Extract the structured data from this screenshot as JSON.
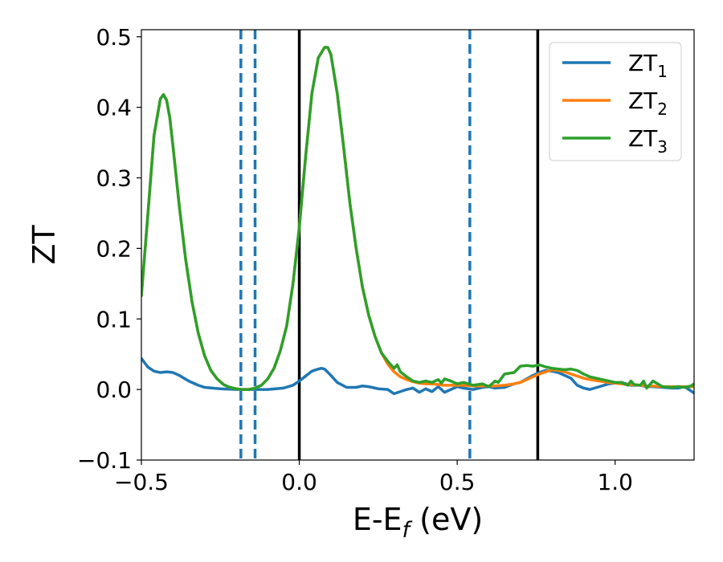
{
  "chart_data": {
    "type": "line",
    "xlabel": {
      "main": "E-E",
      "sub": "f",
      "suffix": " (eV)"
    },
    "ylabel": "ZT",
    "xlim": [
      -0.5,
      1.25
    ],
    "ylim": [
      -0.1,
      0.51
    ],
    "xticks": [
      {
        "value": -0.5,
        "label": "−0.5"
      },
      {
        "value": 0.0,
        "label": "0.0"
      },
      {
        "value": 0.5,
        "label": "0.5"
      },
      {
        "value": 1.0,
        "label": "1.0"
      }
    ],
    "yticks": [
      {
        "value": -0.1,
        "label": "−0.1"
      },
      {
        "value": 0.0,
        "label": "0.0"
      },
      {
        "value": 0.1,
        "label": "0.1"
      },
      {
        "value": 0.2,
        "label": "0.2"
      },
      {
        "value": 0.3,
        "label": "0.3"
      },
      {
        "value": 0.4,
        "label": "0.4"
      },
      {
        "value": 0.5,
        "label": "0.5"
      }
    ],
    "grid": false,
    "legend_position": "top-right",
    "vlines": [
      {
        "x": -0.185,
        "color": "#1f77b4",
        "style": "dashed"
      },
      {
        "x": -0.14,
        "color": "#1f77b4",
        "style": "dashed"
      },
      {
        "x": 0.0,
        "color": "#000000",
        "style": "solid"
      },
      {
        "x": 0.54,
        "color": "#1f77b4",
        "style": "dashed"
      },
      {
        "x": 0.755,
        "color": "#000000",
        "style": "solid"
      }
    ],
    "series": [
      {
        "name": "ZT",
        "sub": "1",
        "color": "#1f77b4",
        "x": [
          -0.5,
          -0.48,
          -0.46,
          -0.44,
          -0.42,
          -0.4,
          -0.38,
          -0.35,
          -0.32,
          -0.3,
          -0.25,
          -0.2,
          -0.15,
          -0.1,
          -0.05,
          -0.02,
          0.0,
          0.02,
          0.04,
          0.06,
          0.07,
          0.08,
          0.1,
          0.12,
          0.15,
          0.18,
          0.2,
          0.22,
          0.25,
          0.28,
          0.3,
          0.32,
          0.34,
          0.36,
          0.38,
          0.4,
          0.42,
          0.44,
          0.46,
          0.48,
          0.5,
          0.52,
          0.55,
          0.58,
          0.6,
          0.62,
          0.65,
          0.68,
          0.7,
          0.72,
          0.74,
          0.76,
          0.78,
          0.8,
          0.82,
          0.84,
          0.86,
          0.88,
          0.9,
          0.92,
          0.95,
          0.98,
          1.0,
          1.02,
          1.05,
          1.08,
          1.1,
          1.12,
          1.15,
          1.18,
          1.2,
          1.22,
          1.25
        ],
        "y": [
          0.044,
          0.032,
          0.026,
          0.024,
          0.025,
          0.024,
          0.02,
          0.012,
          0.006,
          0.003,
          0.001,
          0.0,
          0.0,
          0.0,
          0.002,
          0.006,
          0.012,
          0.019,
          0.026,
          0.029,
          0.03,
          0.029,
          0.02,
          0.01,
          0.003,
          0.003,
          0.005,
          0.004,
          0.001,
          0.0,
          -0.006,
          -0.003,
          0.0,
          0.002,
          -0.004,
          0.001,
          -0.003,
          0.004,
          -0.004,
          0.0,
          0.004,
          0.002,
          0.0,
          0.003,
          0.004,
          0.002,
          0.003,
          0.008,
          0.01,
          0.015,
          0.02,
          0.024,
          0.027,
          0.026,
          0.024,
          0.02,
          0.016,
          0.006,
          0.002,
          0.0,
          0.004,
          0.008,
          0.009,
          0.01,
          0.006,
          0.006,
          0.004,
          0.004,
          0.003,
          0.002,
          0.002,
          0.004,
          -0.005
        ]
      },
      {
        "name": "ZT",
        "sub": "2",
        "color": "#ff7f0e",
        "x": [
          -0.5,
          -0.48,
          -0.46,
          -0.44,
          -0.43,
          -0.42,
          -0.41,
          -0.4,
          -0.38,
          -0.36,
          -0.34,
          -0.32,
          -0.3,
          -0.28,
          -0.26,
          -0.24,
          -0.22,
          -0.2,
          -0.18,
          -0.16,
          -0.14,
          -0.12,
          -0.1,
          -0.08,
          -0.06,
          -0.04,
          -0.02,
          0.0,
          0.02,
          0.04,
          0.06,
          0.08,
          0.09,
          0.1,
          0.12,
          0.14,
          0.16,
          0.18,
          0.2,
          0.22,
          0.24,
          0.26,
          0.28,
          0.3,
          0.32,
          0.34,
          0.36,
          0.38,
          0.4,
          0.42,
          0.44,
          0.46,
          0.48,
          0.5,
          0.52,
          0.55,
          0.58,
          0.6,
          0.62,
          0.65,
          0.68,
          0.7,
          0.72,
          0.74,
          0.76,
          0.78,
          0.8,
          0.82,
          0.84,
          0.86,
          0.88,
          0.9,
          0.92,
          0.95,
          0.98,
          1.0,
          1.02,
          1.05,
          1.08,
          1.1,
          1.12,
          1.15,
          1.18,
          1.2,
          1.22,
          1.25
        ],
        "y": [
          0.133,
          0.245,
          0.36,
          0.412,
          0.418,
          0.41,
          0.385,
          0.345,
          0.26,
          0.185,
          0.125,
          0.08,
          0.048,
          0.027,
          0.015,
          0.007,
          0.003,
          0.001,
          0.0,
          0.0,
          0.002,
          0.006,
          0.015,
          0.03,
          0.055,
          0.09,
          0.15,
          0.23,
          0.33,
          0.42,
          0.47,
          0.485,
          0.485,
          0.475,
          0.42,
          0.345,
          0.265,
          0.2,
          0.145,
          0.105,
          0.075,
          0.052,
          0.036,
          0.025,
          0.018,
          0.014,
          0.011,
          0.009,
          0.008,
          0.008,
          0.007,
          0.006,
          0.006,
          0.006,
          0.006,
          0.005,
          0.005,
          0.005,
          0.005,
          0.006,
          0.008,
          0.01,
          0.014,
          0.018,
          0.022,
          0.025,
          0.028,
          0.027,
          0.025,
          0.022,
          0.019,
          0.016,
          0.014,
          0.012,
          0.01,
          0.009,
          0.008,
          0.007,
          0.006,
          0.005,
          0.005,
          0.004,
          0.004,
          0.004,
          0.004,
          0.004
        ]
      },
      {
        "name": "ZT",
        "sub": "3",
        "color": "#2ca02c",
        "x": [
          -0.5,
          -0.48,
          -0.46,
          -0.44,
          -0.43,
          -0.42,
          -0.41,
          -0.4,
          -0.38,
          -0.36,
          -0.34,
          -0.32,
          -0.3,
          -0.28,
          -0.26,
          -0.24,
          -0.22,
          -0.2,
          -0.18,
          -0.16,
          -0.14,
          -0.12,
          -0.1,
          -0.08,
          -0.06,
          -0.04,
          -0.02,
          0.0,
          0.02,
          0.04,
          0.06,
          0.08,
          0.09,
          0.1,
          0.12,
          0.14,
          0.16,
          0.18,
          0.2,
          0.22,
          0.24,
          0.26,
          0.28,
          0.3,
          0.31,
          0.32,
          0.34,
          0.36,
          0.38,
          0.4,
          0.42,
          0.44,
          0.45,
          0.46,
          0.48,
          0.5,
          0.52,
          0.55,
          0.58,
          0.6,
          0.62,
          0.63,
          0.65,
          0.68,
          0.7,
          0.72,
          0.74,
          0.76,
          0.78,
          0.8,
          0.82,
          0.84,
          0.86,
          0.88,
          0.9,
          0.92,
          0.95,
          0.98,
          1.0,
          1.02,
          1.04,
          1.05,
          1.06,
          1.08,
          1.09,
          1.1,
          1.12,
          1.15,
          1.18,
          1.2,
          1.22,
          1.24,
          1.25
        ],
        "y": [
          0.133,
          0.245,
          0.36,
          0.412,
          0.418,
          0.41,
          0.385,
          0.345,
          0.26,
          0.185,
          0.125,
          0.08,
          0.048,
          0.027,
          0.015,
          0.007,
          0.003,
          0.001,
          0.0,
          0.0,
          0.002,
          0.006,
          0.015,
          0.03,
          0.055,
          0.09,
          0.15,
          0.23,
          0.33,
          0.42,
          0.47,
          0.485,
          0.485,
          0.475,
          0.42,
          0.345,
          0.265,
          0.2,
          0.145,
          0.105,
          0.075,
          0.052,
          0.04,
          0.03,
          0.035,
          0.025,
          0.018,
          0.012,
          0.01,
          0.012,
          0.01,
          0.014,
          0.009,
          0.015,
          0.012,
          0.008,
          0.01,
          0.006,
          0.008,
          0.004,
          0.012,
          0.01,
          0.022,
          0.024,
          0.033,
          0.034,
          0.033,
          0.035,
          0.032,
          0.03,
          0.029,
          0.028,
          0.029,
          0.027,
          0.022,
          0.018,
          0.015,
          0.012,
          0.01,
          0.01,
          0.006,
          0.012,
          0.007,
          0.006,
          0.012,
          0.002,
          0.012,
          0.004,
          0.003,
          0.004,
          0.003,
          0.005,
          0.008
        ]
      }
    ]
  }
}
